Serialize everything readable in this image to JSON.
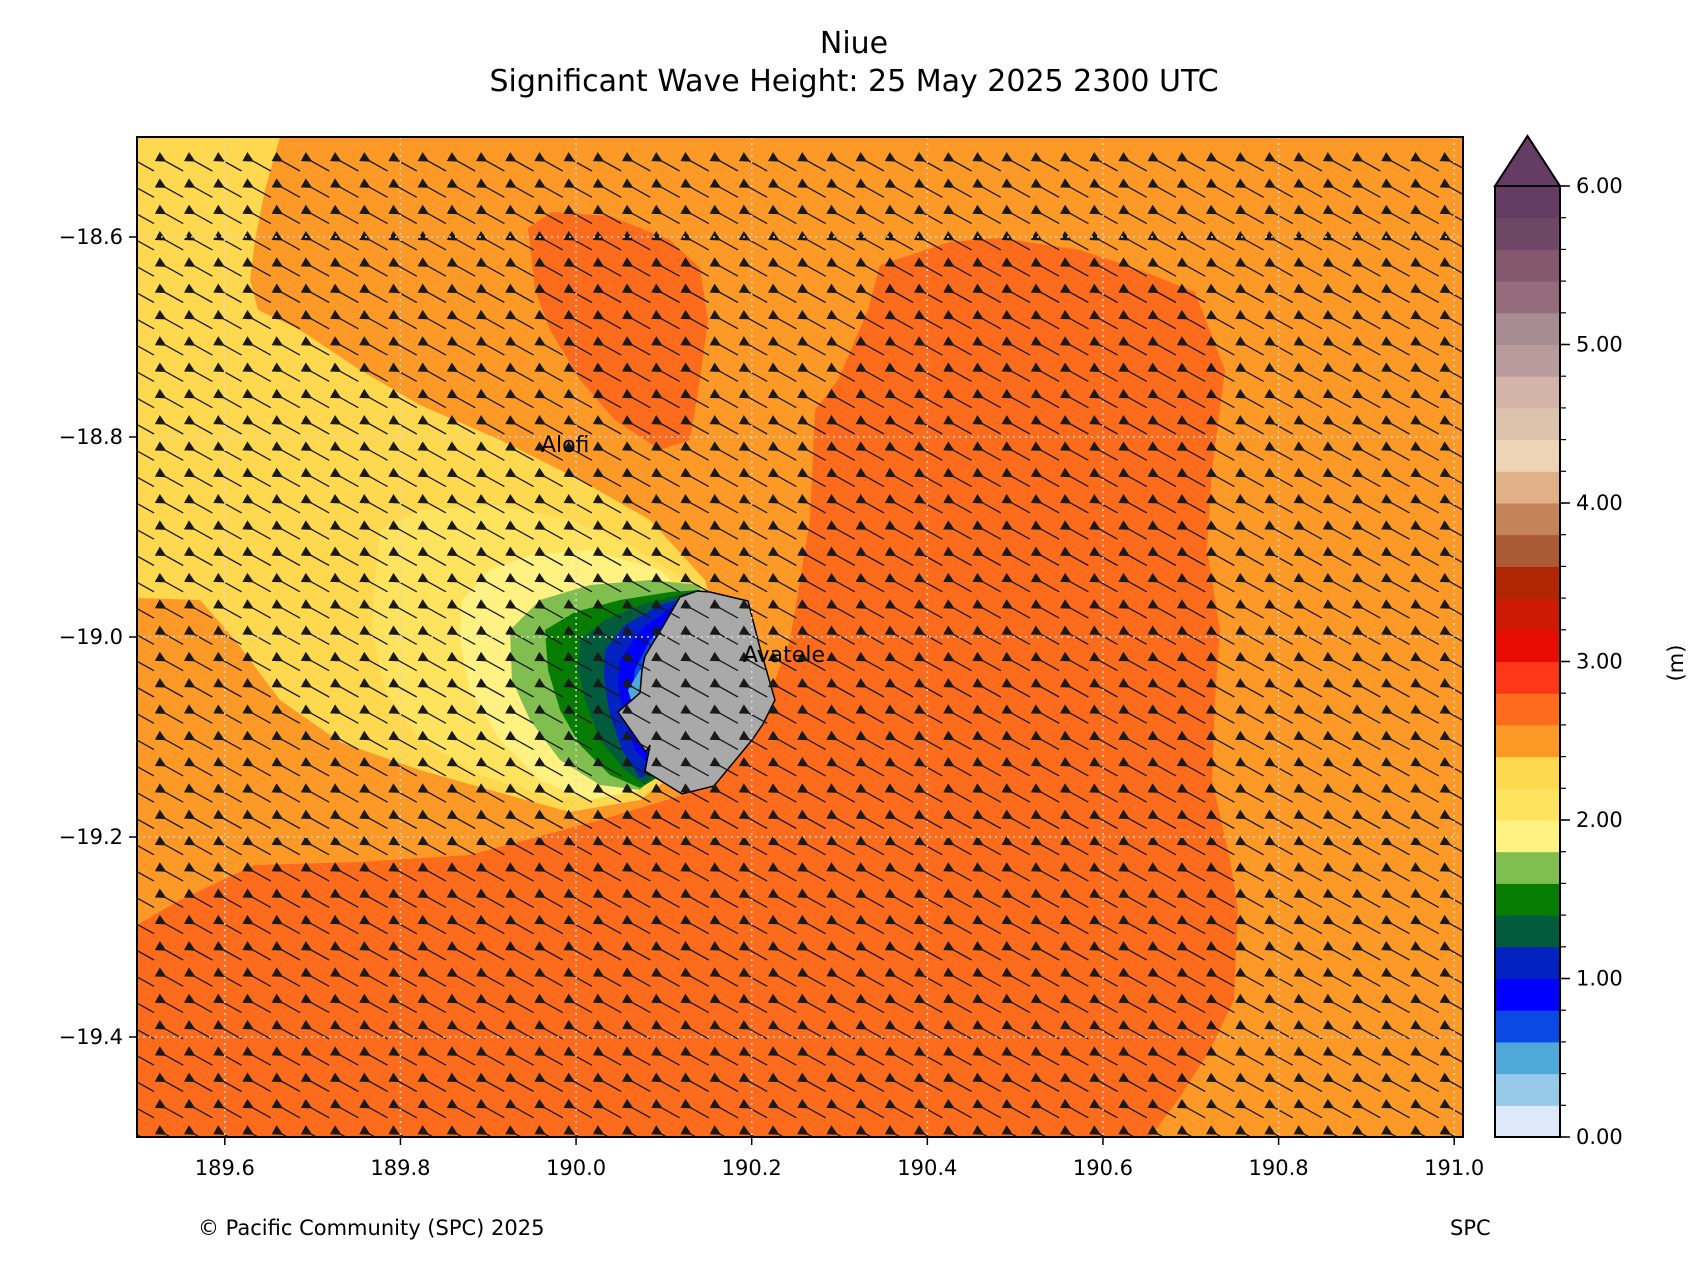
{
  "title": {
    "line1": "Niue",
    "line2": "Significant Wave Height: 25 May 2025  2300 UTC"
  },
  "map": {
    "x_ticks": [
      "189.6",
      "189.8",
      "190.0",
      "190.2",
      "190.4",
      "190.6",
      "190.8",
      "191.0"
    ],
    "y_ticks": [
      "−18.6",
      "−18.8",
      "−19.0",
      "−19.2",
      "−19.4"
    ],
    "x_range": [
      189.5,
      191.01
    ],
    "y_range": [
      -19.5,
      -18.5
    ],
    "grid": true,
    "places": [
      {
        "name": "Alofi",
        "lon": 189.96,
        "lat": -18.815
      },
      {
        "name": "Avatele",
        "lon": 190.19,
        "lat": -19.025
      }
    ],
    "arrow_direction": "toward upper-left (WNW)",
    "land_color": "#a9a9a9",
    "colors": {
      "ocean_main": "#fd9a27",
      "band_2_8": "#fd6c1c",
      "band_2_2": "#fed94f",
      "band_2_0": "#fee35f",
      "band_1_8": "#fff283",
      "band_1_6": "#7fbe4f",
      "band_1_4": "#067d02",
      "band_1_2": "#025b3c",
      "band_1_0": "#0323c0",
      "band_0_8": "#0000fe",
      "band_0_6": "#0a49e3"
    }
  },
  "colorbar": {
    "tick_labels": [
      "6.00",
      "5.00",
      "4.00",
      "3.00",
      "2.00",
      "1.00",
      "0.00"
    ],
    "unit_label": "(m)",
    "range": [
      0,
      6
    ],
    "extend": "max",
    "colors": [
      "#dde8f8",
      "#96c8e8",
      "#4fa8d8",
      "#0a49e3",
      "#0000fe",
      "#0323c0",
      "#025b3c",
      "#067d02",
      "#7fbe4f",
      "#fff283",
      "#fee35f",
      "#fed94f",
      "#fd9a27",
      "#fd6c1c",
      "#fd3718",
      "#e80d03",
      "#cc1a04",
      "#b02503",
      "#ab5b33",
      "#c28458",
      "#e0b088",
      "#ecd4b4",
      "#dcc4ac",
      "#d4b4a8",
      "#b89c9c",
      "#a88c94",
      "#946c7c",
      "#86586f",
      "#6e4764",
      "#643c64"
    ]
  },
  "footer": {
    "left": "© Pacific Community (SPC) 2025",
    "right": "SPC"
  }
}
